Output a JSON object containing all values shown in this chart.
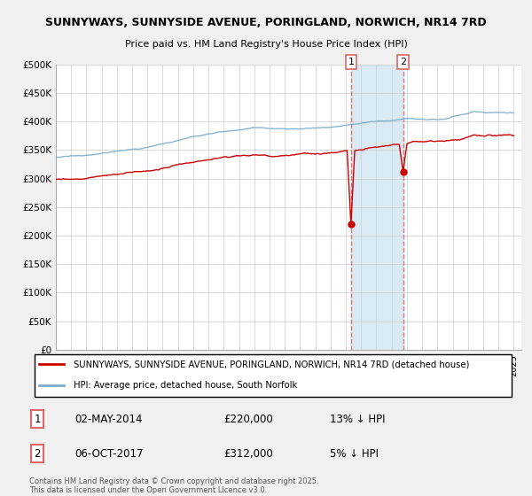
{
  "title1": "SUNNYWAYS, SUNNYSIDE AVENUE, PORINGLAND, NORWICH, NR14 7RD",
  "title2": "Price paid vs. HM Land Registry's House Price Index (HPI)",
  "ylim": [
    0,
    500000
  ],
  "yticks": [
    0,
    50000,
    100000,
    150000,
    200000,
    250000,
    300000,
    350000,
    400000,
    450000,
    500000
  ],
  "ytick_labels": [
    "£0",
    "£50K",
    "£100K",
    "£150K",
    "£200K",
    "£250K",
    "£300K",
    "£350K",
    "£400K",
    "£450K",
    "£500K"
  ],
  "xlim_start": 1995.0,
  "xlim_end": 2025.5,
  "transaction1_x": 2014.34,
  "transaction1_price_val": 220000,
  "transaction1_date": "02-MAY-2014",
  "transaction1_price": "£220,000",
  "transaction1_hpi": "13% ↓ HPI",
  "transaction2_x": 2017.76,
  "transaction2_price_val": 312000,
  "transaction2_date": "06-OCT-2017",
  "transaction2_price": "£312,000",
  "transaction2_hpi": "5% ↓ HPI",
  "line_red_color": "#cc0000",
  "line_blue_color": "#7aadce",
  "shade_color": "#daeaf5",
  "dashed_color": "#dd6666",
  "legend_label_red": "SUNNYWAYS, SUNNYSIDE AVENUE, PORINGLAND, NORWICH, NR14 7RD (detached house)",
  "legend_label_blue": "HPI: Average price, detached house, South Norfolk",
  "footer": "Contains HM Land Registry data © Crown copyright and database right 2025.\nThis data is licensed under the Open Government Licence v3.0.",
  "bg_color": "#f0f0f0",
  "plot_bg_color": "#ffffff",
  "grid_color": "#cccccc"
}
